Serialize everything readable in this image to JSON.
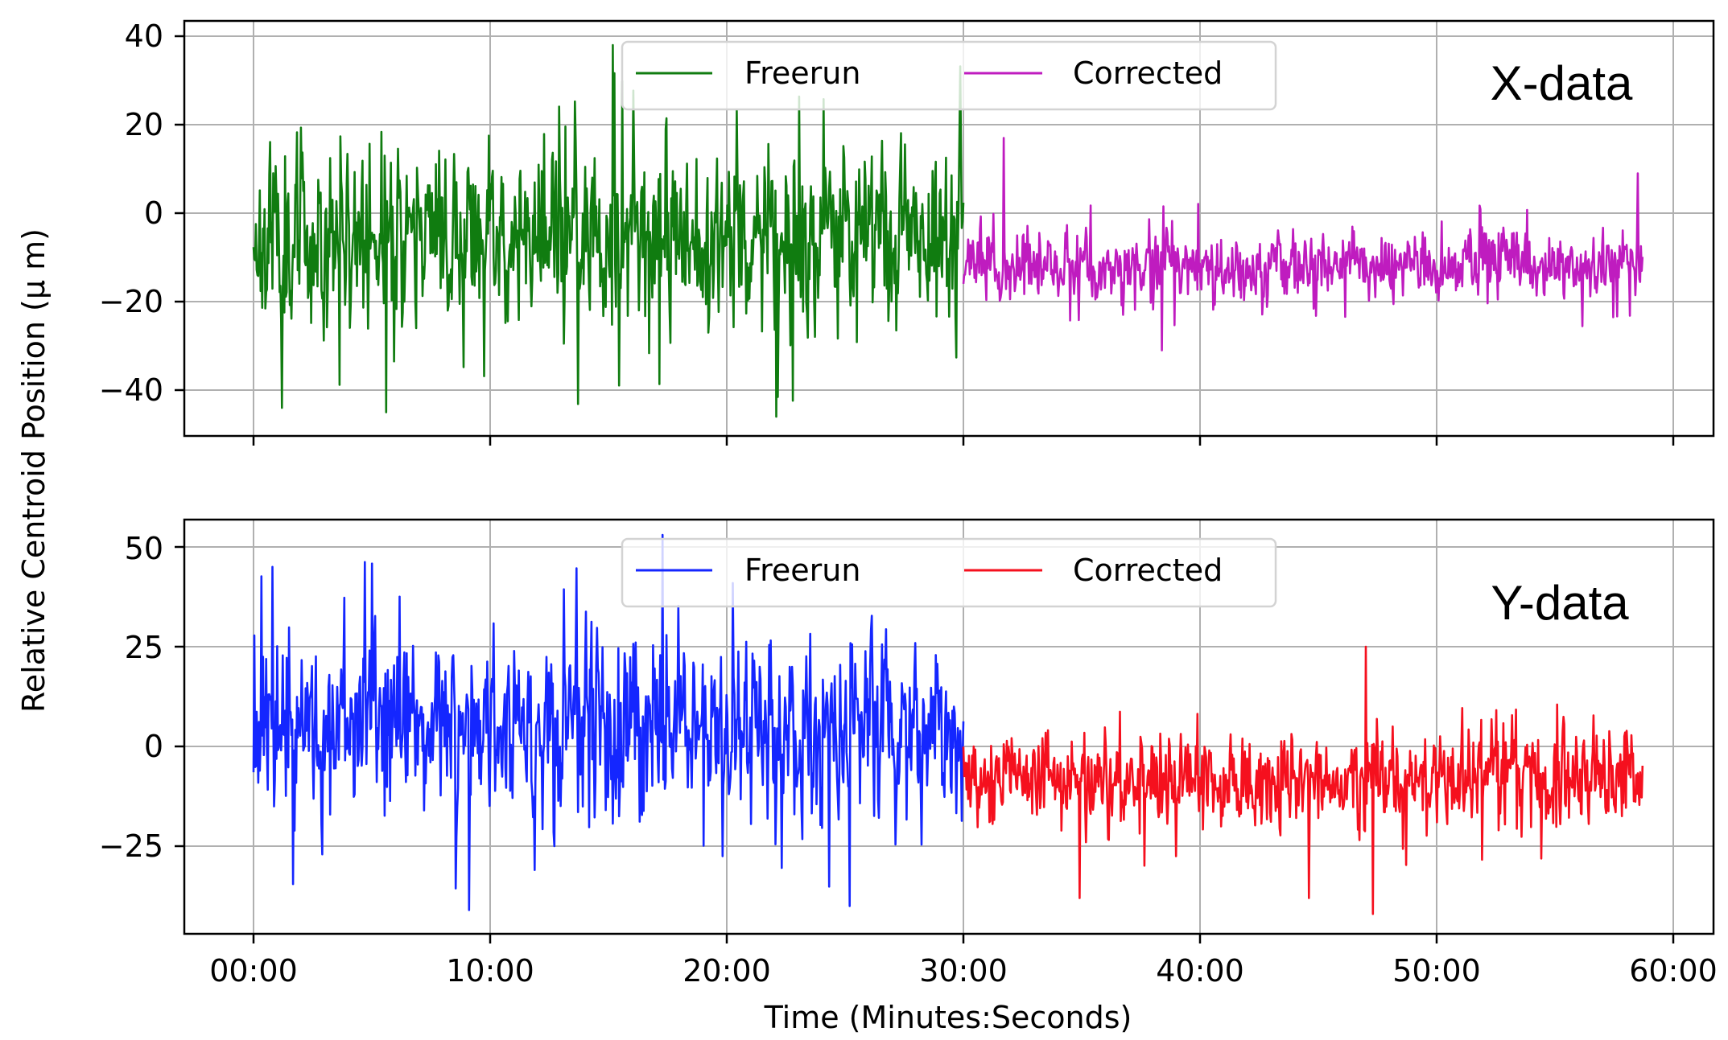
{
  "figure": {
    "ylabel": "Relative Centroid Position (μ m)",
    "xlabel": "Time (Minutes:Seconds)",
    "x_tick_labels": [
      "00:00",
      "10:00",
      "20:00",
      "30:00",
      "40:00",
      "50:00",
      "60:00"
    ]
  },
  "panels": [
    {
      "id": "x",
      "label": "X-data",
      "y_tick_labels": [
        "40",
        "20",
        "0",
        "−20",
        "−40"
      ],
      "legend": [
        {
          "label": "Freerun",
          "color": "#107c10"
        },
        {
          "label": "Corrected",
          "color": "#bf1cbf"
        }
      ]
    },
    {
      "id": "y",
      "label": "Y-data",
      "y_tick_labels": [
        "50",
        "25",
        "0",
        "−25"
      ],
      "legend": [
        {
          "label": "Freerun",
          "color": "#1426ff"
        },
        {
          "label": "Corrected",
          "color": "#f5101e"
        }
      ]
    }
  ],
  "chart_data": [
    {
      "type": "line",
      "title": "X-data",
      "xlabel": "Time (Minutes:Seconds)",
      "ylabel": "Relative Centroid Position (μ m)",
      "xlim_minutes": [
        -2.9,
        61.7
      ],
      "ylim": [
        -47,
        43.5
      ],
      "yticks": [
        40,
        20,
        0,
        -20,
        -40
      ],
      "xticks_minutes": [
        0,
        10,
        20,
        30,
        40,
        50,
        60
      ],
      "x_tick_labels": [
        "00:00",
        "10:00",
        "20:00",
        "30:00",
        "40:00",
        "50:00",
        "60:00"
      ],
      "grid": true,
      "legend_position": "upper center",
      "series": [
        {
          "name": "Freerun",
          "color": "#107c10",
          "t_start_min": 0.0,
          "t_end_min": 30.0,
          "mean": -5,
          "std": 12,
          "min": -46,
          "max": 38,
          "n_points": 900,
          "seed": 11,
          "notable_points": [
            {
              "t_min": 15.2,
              "value": 38
            },
            {
              "t_min": 22.1,
              "value": -46
            },
            {
              "t_min": 5.6,
              "value": -45
            },
            {
              "t_min": 1.2,
              "value": -44
            }
          ]
        },
        {
          "name": "Corrected",
          "color": "#bf1cbf",
          "t_start_min": 30.0,
          "t_end_min": 58.7,
          "mean": -12,
          "std": 4.5,
          "min": -31,
          "max": 17,
          "n_points": 860,
          "seed": 23,
          "notable_points": [
            {
              "t_min": 31.7,
              "value": 17
            },
            {
              "t_min": 38.4,
              "value": -31
            },
            {
              "t_min": 58.5,
              "value": 9
            }
          ]
        }
      ]
    },
    {
      "type": "line",
      "title": "Y-data",
      "xlabel": "Time (Minutes:Seconds)",
      "ylabel": "Relative Centroid Position (μ m)",
      "xlim_minutes": [
        -2.9,
        61.7
      ],
      "ylim": [
        -47,
        57
      ],
      "yticks": [
        50,
        25,
        0,
        -25
      ],
      "xticks_minutes": [
        0,
        10,
        20,
        30,
        40,
        50,
        60
      ],
      "x_tick_labels": [
        "00:00",
        "10:00",
        "20:00",
        "30:00",
        "40:00",
        "50:00",
        "60:00"
      ],
      "grid": true,
      "legend_position": "upper center",
      "series": [
        {
          "name": "Freerun",
          "color": "#1426ff",
          "t_start_min": 0.0,
          "t_end_min": 30.0,
          "mean": 5,
          "std": 13,
          "min": -41,
          "max": 53,
          "n_points": 900,
          "seed": 37,
          "notable_points": [
            {
              "t_min": 17.3,
              "value": 53
            },
            {
              "t_min": 9.1,
              "value": -41
            },
            {
              "t_min": 25.2,
              "value": -40
            },
            {
              "t_min": 0.8,
              "value": 45
            }
          ]
        },
        {
          "name": "Corrected",
          "color": "#f5101e",
          "t_start_min": 30.0,
          "t_end_min": 58.7,
          "mean": -8,
          "std": 7,
          "min": -42,
          "max": 25,
          "n_points": 860,
          "seed": 53,
          "notable_points": [
            {
              "t_min": 47.0,
              "value": 25
            },
            {
              "t_min": 47.3,
              "value": -42
            },
            {
              "t_min": 34.9,
              "value": -38
            },
            {
              "t_min": 44.6,
              "value": -38
            }
          ]
        }
      ]
    }
  ]
}
